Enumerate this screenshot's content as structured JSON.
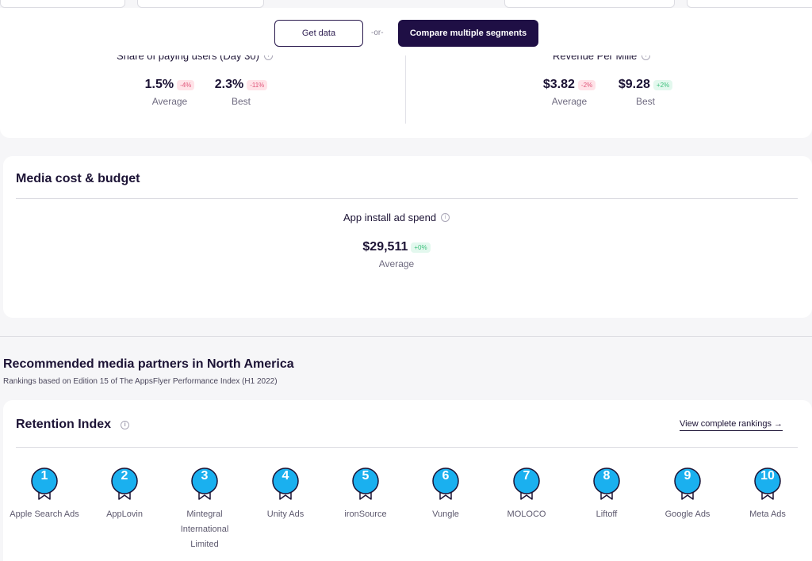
{
  "actions": {
    "get_data": "Get data",
    "or": "-or-",
    "compare": "Compare multiple segments"
  },
  "metrics": {
    "paying_users": {
      "title": "Share of paying users (Day 30)",
      "average": {
        "value": "1.5%",
        "change": "-4%",
        "label": "Average"
      },
      "best": {
        "value": "2.3%",
        "change": "-11%",
        "label": "Best"
      }
    },
    "rpm": {
      "title": "Revenue Per Mille",
      "average": {
        "value": "$3.82",
        "change": "-2%",
        "label": "Average"
      },
      "best": {
        "value": "$9.28",
        "change": "+2%",
        "label": "Best"
      }
    }
  },
  "media_cost": {
    "heading": "Media cost & budget",
    "metric_title": "App install ad spend",
    "average": {
      "value": "$29,511",
      "change": "+0%",
      "label": "Average"
    }
  },
  "recommended": {
    "title": "Recommended media partners in North America",
    "subtitle": "Rankings based on Edition 15 of The AppsFlyer Performance Index (H1 2022)"
  },
  "retention": {
    "title": "Retention Index",
    "view_link": "View complete rankings →",
    "medal_color": "#1ab0ef",
    "partners": [
      {
        "rank": "1",
        "name": "Apple Search Ads"
      },
      {
        "rank": "2",
        "name": "AppLovin"
      },
      {
        "rank": "3",
        "name": "Mintegral International Limited"
      },
      {
        "rank": "4",
        "name": "Unity Ads"
      },
      {
        "rank": "5",
        "name": "ironSource"
      },
      {
        "rank": "6",
        "name": "Vungle"
      },
      {
        "rank": "7",
        "name": "MOLOCO"
      },
      {
        "rank": "8",
        "name": "Liftoff"
      },
      {
        "rank": "9",
        "name": "Google Ads"
      },
      {
        "rank": "10",
        "name": "Meta Ads"
      }
    ]
  }
}
